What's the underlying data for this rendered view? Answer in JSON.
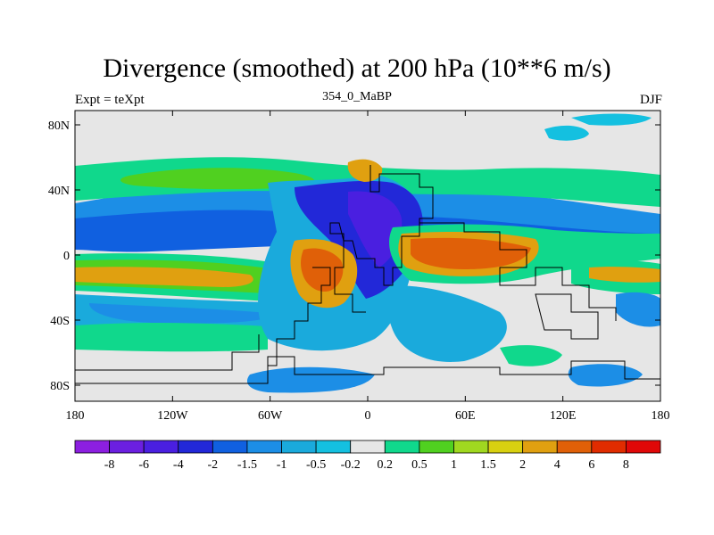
{
  "title": "Divergence (smoothed) at 200 hPa (10**6 m/s)",
  "left_label": "Expt = teXpt",
  "center_label": "354_0_MaBP",
  "right_label": "DJF",
  "map": {
    "lat_ticks": [
      "80N",
      "40N",
      "0",
      "40S",
      "80S"
    ],
    "lon_ticks": [
      "180",
      "120W",
      "60W",
      "0",
      "60E",
      "120E",
      "180"
    ],
    "background_color": "#e6e6e6"
  },
  "colorbar": {
    "colors": [
      "#8c1fe0",
      "#6b1fe0",
      "#4a1fe0",
      "#2228d8",
      "#1060e0",
      "#1c8ee6",
      "#1aaadc",
      "#14c0e0",
      "#e6e6e6",
      "#10d88c",
      "#50d020",
      "#a0d820",
      "#d8d010",
      "#e0a010",
      "#e06008",
      "#e02c00",
      "#e00808"
    ],
    "labels": [
      "-8",
      "-6",
      "-4",
      "-2",
      "-1.5",
      "-1",
      "-0.5",
      "-0.2",
      "0.2",
      "0.5",
      "1",
      "1.5",
      "2",
      "4",
      "6",
      "8"
    ]
  }
}
